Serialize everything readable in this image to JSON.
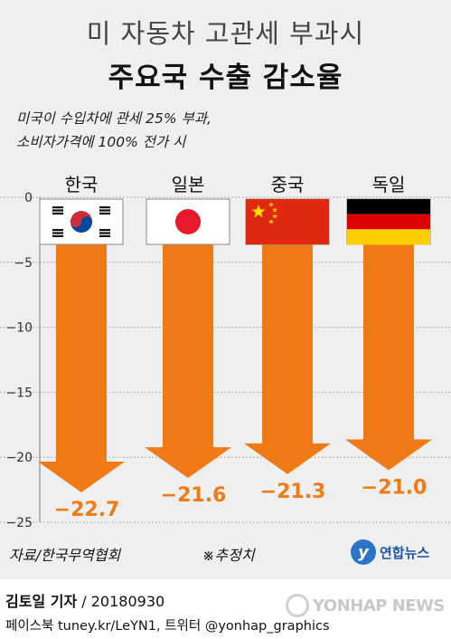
{
  "title_line1": "미 자동차 고관세 부과시",
  "title_line2": "주요국 수출 감소율",
  "note": "미국이 수입차에 관세 25% 부과,\n소비자가격에 100% 전가 시",
  "source": "자료/한국무역협회",
  "estimate_note": "※추정치",
  "logo_text": "연합뉴스",
  "reporter_name": "김토일 기자",
  "reporter_date": " / 20180930",
  "social": "페이스북 tuney.kr/LeYN1, 트위터 @yonhap_graphics",
  "watermark_text": "YONHAP NEWS",
  "colors": {
    "arrow": "#ef7a16",
    "value_text": "#ef7a16",
    "background": "#efefef"
  },
  "chart_data": {
    "type": "bar",
    "categories": [
      "한국",
      "일본",
      "중국",
      "독일"
    ],
    "values": [
      -22.7,
      -21.6,
      -21.3,
      -21.0
    ],
    "value_labels": [
      "−22.7",
      "−21.6",
      "−21.3",
      "−21.0"
    ],
    "flags": [
      "south-korea-flag",
      "japan-flag",
      "china-flag",
      "germany-flag"
    ],
    "ylim": [
      -25,
      0
    ],
    "yticks": [
      0,
      -5,
      -10,
      -15,
      -20,
      -25
    ],
    "ytick_labels": [
      "0",
      "−5",
      "−10",
      "−15",
      "−20",
      "−25"
    ],
    "grid": true,
    "mark": "downward arrow"
  }
}
